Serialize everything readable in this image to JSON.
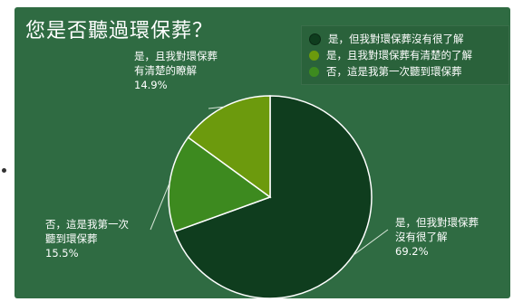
{
  "chart_data": {
    "type": "pie",
    "title": "您是否聽過環保葬？",
    "slices": [
      {
        "label": "是，但我對環保葬沒有很了解",
        "value": 69.2,
        "value_text": "69.2%",
        "color": "#0f3d1e",
        "callout_lines": [
          "是，但我對環保葬",
          "沒有很了解",
          "69.2%"
        ]
      },
      {
        "label": "否，這是我第一次聽到環保葬",
        "value": 15.5,
        "value_text": "15.5%",
        "color": "#3d8a1f",
        "callout_lines": [
          "否，這是我第一次",
          "聽到環保葬",
          "15.5%"
        ]
      },
      {
        "label": "是，且我對環保葬有清楚的了解",
        "value": 14.9,
        "value_text": "14.9%",
        "color": "#6c9a0d",
        "callout_lines": [
          "是，且我對環保葬",
          "有清楚的瞭解",
          "14.9%"
        ]
      }
    ],
    "legend": [
      {
        "label": "是，但我對環保葬沒有很了解",
        "color": "#0f3d1e"
      },
      {
        "label": "是，且我對環保葬有清楚的了解",
        "color": "#6c9a0d"
      },
      {
        "label": "否，這是我第一次聽到環保葬",
        "color": "#3d8a1f"
      }
    ],
    "legend_position": "top-right"
  },
  "colors": {
    "background": "#2f6b42",
    "leader_line": "#d8e6d8"
  }
}
